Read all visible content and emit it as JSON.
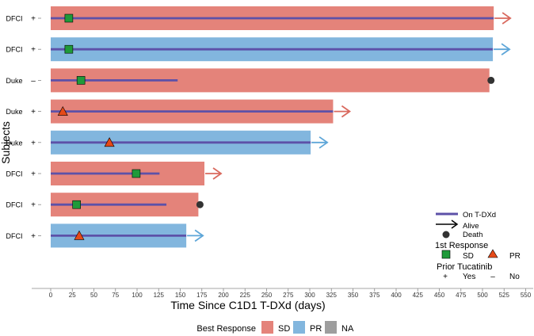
{
  "chart_data": {
    "type": "swimmer",
    "xlabel": "Time Since C1D1 T-DXd (days)",
    "ylabel": "Subjects",
    "xlim": [
      0,
      560
    ],
    "xticks": [
      0,
      25,
      50,
      75,
      100,
      125,
      150,
      175,
      200,
      225,
      250,
      275,
      300,
      325,
      350,
      375,
      400,
      425,
      450,
      475,
      500,
      525,
      550
    ],
    "subjects": [
      {
        "site": "DFCI",
        "prior": "+",
        "best_response": "SD",
        "bar_end": 513,
        "on_tdxd_end": 513,
        "first_response": "SD",
        "first_response_day": 21,
        "status": "alive"
      },
      {
        "site": "DFCI",
        "prior": "+",
        "best_response": "PR",
        "bar_end": 512,
        "on_tdxd_end": 512,
        "first_response": "SD",
        "first_response_day": 21,
        "status": "alive"
      },
      {
        "site": "Duke",
        "prior": "–",
        "best_response": "SD",
        "bar_end": 508,
        "on_tdxd_end": 147,
        "first_response": "SD",
        "first_response_day": 35,
        "status": "death"
      },
      {
        "site": "Duke",
        "prior": "+",
        "best_response": "SD",
        "bar_end": 327,
        "on_tdxd_end": 327,
        "first_response": "PR",
        "first_response_day": 14,
        "status": "alive"
      },
      {
        "site": "Duke",
        "prior": "+",
        "best_response": "PR",
        "bar_end": 301,
        "on_tdxd_end": 301,
        "first_response": "PR",
        "first_response_day": 68,
        "status": "alive"
      },
      {
        "site": "DFCI",
        "prior": "+",
        "best_response": "SD",
        "bar_end": 178,
        "on_tdxd_end": 126,
        "first_response": "SD",
        "first_response_day": 99,
        "status": "alive"
      },
      {
        "site": "DFCI",
        "prior": "+",
        "best_response": "SD",
        "bar_end": 171,
        "on_tdxd_end": 134,
        "first_response": "SD",
        "first_response_day": 30,
        "status": "death"
      },
      {
        "site": "DFCI",
        "prior": "+",
        "best_response": "PR",
        "bar_end": 157,
        "on_tdxd_end": 157,
        "first_response": "PR",
        "first_response_day": 33,
        "status": "alive"
      }
    ],
    "legend": {
      "on_tdxd": "On T-DXd",
      "alive": "Alive",
      "death": "Death",
      "first_response_title": "1st Response",
      "sd": "SD",
      "pr": "PR",
      "prior_title": "Prior Tucatinib",
      "yes_sym": "+",
      "yes": "Yes",
      "no_sym": "–",
      "no": "No"
    },
    "best_response_legend": {
      "title": "Best Response",
      "items": [
        {
          "label": "SD",
          "color": "#e4837a"
        },
        {
          "label": "PR",
          "color": "#82b6de"
        },
        {
          "label": "NA",
          "color": "#9e9e9e"
        }
      ]
    }
  },
  "colors": {
    "sd": "#e4837a",
    "pr": "#82b6de",
    "na": "#9e9e9e",
    "treatment_line": "#5d51a8",
    "arrow_sd": "#d9695e",
    "arrow_pr": "#5ea6d8",
    "sd_marker": "#1f9a3a",
    "pr_marker": "#e64a19",
    "death": "#333333"
  }
}
